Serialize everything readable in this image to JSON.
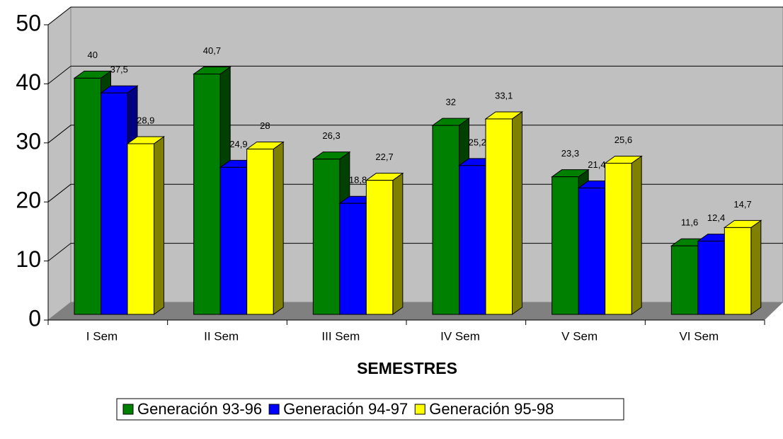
{
  "chart_data": {
    "type": "bar3d",
    "x_label": "SEMESTRES",
    "categories": [
      "I Sem",
      "II Sem",
      "III Sem",
      "IV Sem",
      "V Sem",
      "VI Sem"
    ],
    "series": [
      {
        "name": "Generación 93-96",
        "color": "#008000",
        "side": "#004000",
        "values": [
          40,
          40.7,
          26.3,
          32,
          23.3,
          11.6
        ],
        "value_labels": [
          "40",
          "40,7",
          "26,3",
          "32",
          "23,3",
          "11,6"
        ]
      },
      {
        "name": "Generación 94-97",
        "color": "#0000ff",
        "side": "#000080",
        "values": [
          37.5,
          24.9,
          18.8,
          25.2,
          21.4,
          12.4
        ],
        "value_labels": [
          "37,5",
          "24,9",
          "18,8",
          "25,2",
          "21,4",
          "12,4"
        ]
      },
      {
        "name": "Generación 95-98",
        "color": "#ffff00",
        "side": "#808000",
        "values": [
          28.9,
          28,
          22.7,
          33.1,
          25.6,
          14.7
        ],
        "value_labels": [
          "28,9",
          "28",
          "22,7",
          "33,1",
          "25,6",
          "14,7"
        ]
      }
    ],
    "ylim": [
      0,
      50
    ],
    "yticks": [
      0,
      10,
      20,
      30,
      40,
      50
    ],
    "grid": true,
    "legend": "bottom"
  }
}
